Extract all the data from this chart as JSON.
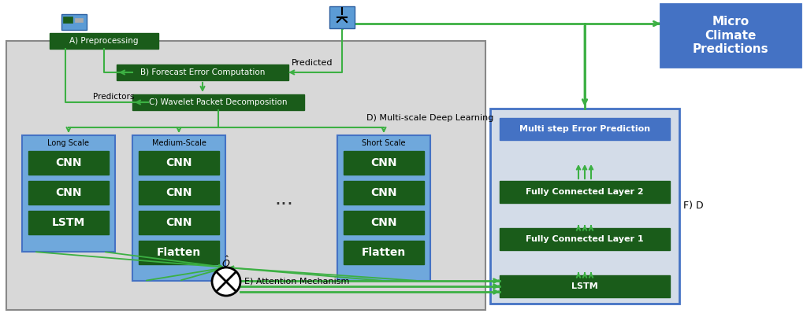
{
  "dark_green": "#1a5c1a",
  "arrow_green": "#3cb043",
  "blue_box": "#4472c4",
  "light_blue_box": "#5b9bd5",
  "decoder_bg": "#d3dce8",
  "main_panel_bg": "#d8d8d8",
  "title": "Micro\nClimate\nPredictions",
  "label_a": "A) Preprocessing",
  "label_b": "B) Forecast Error Computation",
  "label_c": "C) Wavelet Packet Decomposition",
  "label_d": "D) Multi-scale Deep Learning",
  "label_e": "E) Attention Mechanism",
  "label_f": "F) D",
  "label_predicted": "Predicted",
  "label_predictors": "Predictors",
  "long_scale_label": "Long Scale",
  "medium_scale_label": "Medium-Scale",
  "short_scale_label": "Short Scale",
  "long_scale_layers": [
    "CNN",
    "CNN",
    "LSTM"
  ],
  "medium_scale_layers": [
    "CNN",
    "CNN",
    "CNN",
    "Flatten"
  ],
  "short_scale_layers": [
    "CNN",
    "CNN",
    "CNN",
    "Flatten"
  ],
  "decoder_layers_bottom_to_top": [
    "LSTM",
    "Fully Connected Layer 1",
    "Fully Connected Layer 2",
    "Multi step Error Prediction"
  ],
  "decoder_layer_colors": [
    "#1a5c1a",
    "#1a5c1a",
    "#1a5c1a",
    "#4472c4"
  ]
}
